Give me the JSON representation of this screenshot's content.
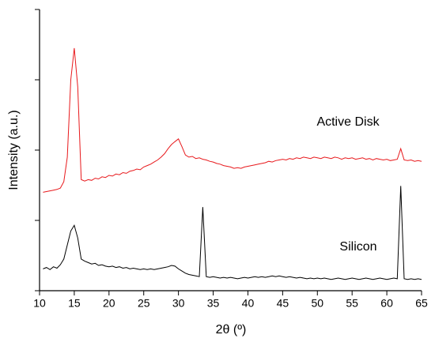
{
  "chart_data": {
    "type": "line",
    "xlabel": "2θ (º)",
    "ylabel": "Intensity (a.u.)",
    "x": [
      10.5,
      11,
      11.5,
      12,
      12.5,
      13,
      13.5,
      14,
      14.5,
      15,
      15.5,
      16,
      16.5,
      17,
      17.5,
      18,
      18.5,
      19,
      19.5,
      20,
      20.5,
      21,
      21.5,
      22,
      22.5,
      23,
      23.5,
      24,
      24.5,
      25,
      25.5,
      26,
      26.5,
      27,
      27.5,
      28,
      28.5,
      29,
      29.5,
      30,
      30.5,
      31,
      31.5,
      32,
      32.5,
      33,
      33.5,
      34,
      34.5,
      35,
      35.5,
      36,
      36.5,
      37,
      37.5,
      38,
      38.5,
      39,
      39.5,
      40,
      40.5,
      41,
      41.5,
      42,
      42.5,
      43,
      43.5,
      44,
      44.5,
      45,
      45.5,
      46,
      46.5,
      47,
      47.5,
      48,
      48.5,
      49,
      49.5,
      50,
      50.5,
      51,
      51.5,
      52,
      52.5,
      53,
      53.5,
      54,
      54.5,
      55,
      55.5,
      56,
      56.5,
      57,
      57.5,
      58,
      58.5,
      59,
      59.5,
      60,
      60.5,
      61,
      61.5,
      62,
      62.5,
      63,
      63.5,
      64,
      64.5,
      65
    ],
    "series": [
      {
        "name": "Active Disk",
        "color": "#e8191c",
        "values": [
          1.4,
          1.41,
          1.42,
          1.43,
          1.44,
          1.46,
          1.55,
          1.9,
          3.0,
          3.45,
          2.9,
          1.58,
          1.56,
          1.58,
          1.57,
          1.6,
          1.59,
          1.62,
          1.61,
          1.64,
          1.63,
          1.66,
          1.65,
          1.68,
          1.67,
          1.7,
          1.71,
          1.73,
          1.72,
          1.76,
          1.78,
          1.8,
          1.83,
          1.86,
          1.9,
          1.95,
          2.02,
          2.08,
          2.12,
          2.16,
          2.05,
          1.93,
          1.9,
          1.91,
          1.88,
          1.89,
          1.87,
          1.86,
          1.84,
          1.83,
          1.81,
          1.8,
          1.78,
          1.77,
          1.76,
          1.74,
          1.75,
          1.74,
          1.76,
          1.77,
          1.78,
          1.79,
          1.8,
          1.81,
          1.82,
          1.84,
          1.83,
          1.85,
          1.86,
          1.87,
          1.86,
          1.88,
          1.87,
          1.89,
          1.88,
          1.9,
          1.89,
          1.88,
          1.9,
          1.89,
          1.88,
          1.9,
          1.89,
          1.88,
          1.9,
          1.89,
          1.87,
          1.89,
          1.88,
          1.89,
          1.87,
          1.88,
          1.89,
          1.87,
          1.88,
          1.86,
          1.88,
          1.87,
          1.86,
          1.87,
          1.85,
          1.86,
          1.87,
          2.02,
          1.86,
          1.85,
          1.86,
          1.84,
          1.85,
          1.84
        ]
      },
      {
        "name": "Silicon",
        "color": "#000000",
        "values": [
          0.31,
          0.33,
          0.3,
          0.34,
          0.32,
          0.37,
          0.45,
          0.65,
          0.85,
          0.93,
          0.75,
          0.45,
          0.42,
          0.4,
          0.38,
          0.39,
          0.36,
          0.37,
          0.35,
          0.34,
          0.35,
          0.33,
          0.34,
          0.32,
          0.33,
          0.31,
          0.32,
          0.31,
          0.3,
          0.31,
          0.3,
          0.31,
          0.3,
          0.31,
          0.32,
          0.33,
          0.34,
          0.36,
          0.35,
          0.31,
          0.28,
          0.25,
          0.23,
          0.22,
          0.21,
          0.2,
          1.19,
          0.2,
          0.19,
          0.2,
          0.19,
          0.18,
          0.19,
          0.18,
          0.19,
          0.18,
          0.17,
          0.18,
          0.19,
          0.18,
          0.19,
          0.2,
          0.19,
          0.2,
          0.19,
          0.2,
          0.21,
          0.2,
          0.21,
          0.2,
          0.19,
          0.2,
          0.19,
          0.18,
          0.19,
          0.18,
          0.17,
          0.18,
          0.17,
          0.18,
          0.17,
          0.18,
          0.17,
          0.16,
          0.17,
          0.18,
          0.17,
          0.16,
          0.17,
          0.18,
          0.17,
          0.16,
          0.17,
          0.18,
          0.17,
          0.16,
          0.17,
          0.18,
          0.17,
          0.16,
          0.17,
          0.18,
          0.17,
          1.49,
          0.17,
          0.16,
          0.17,
          0.16,
          0.17,
          0.16
        ]
      }
    ],
    "xlim": [
      10,
      65
    ],
    "xticks": [
      10,
      15,
      20,
      25,
      30,
      35,
      40,
      45,
      50,
      55,
      60,
      65
    ],
    "ylim": [
      0,
      4
    ],
    "ytick_marks": [
      0,
      1,
      2,
      3,
      4
    ]
  }
}
